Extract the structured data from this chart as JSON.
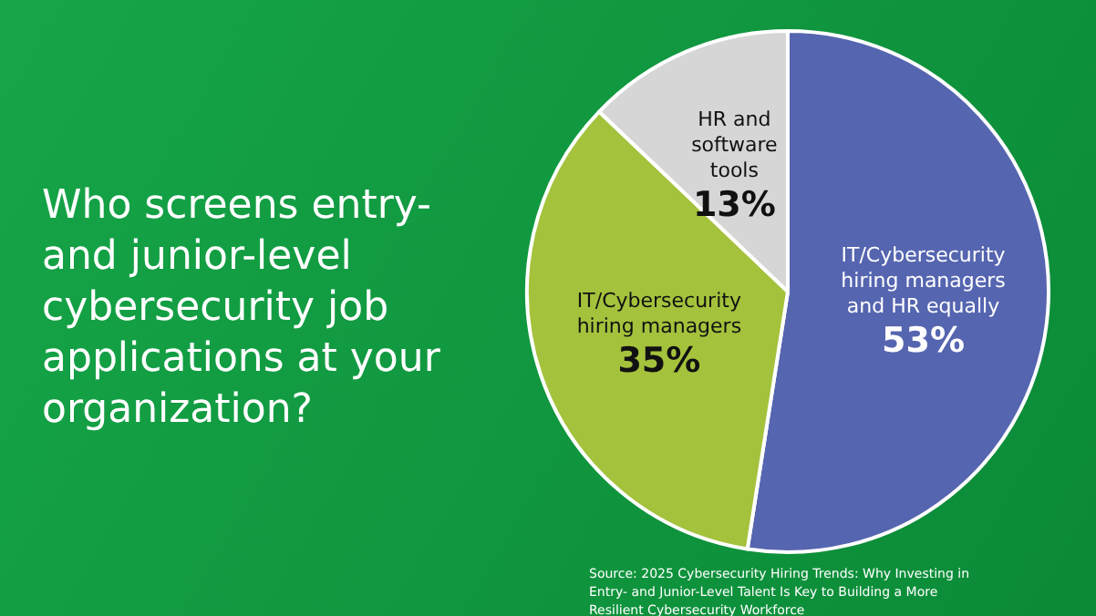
{
  "chart_data": {
    "type": "pie",
    "title": "Who screens entry- and junior-level cybersecurity job applications at your organization?",
    "categories": [
      "IT/Cybersecurity hiring managers and HR equally",
      "IT/Cybersecurity hiring managers",
      "HR and software tools"
    ],
    "values": [
      53,
      35,
      13
    ],
    "colors": [
      "#5565b0",
      "#a4c23c",
      "#d6d6d6"
    ],
    "value_labels": [
      "53%",
      "35%",
      "13%"
    ],
    "legend": false,
    "annotations": [
      "Source: 2025 Cybersecurity Hiring Trends: Why Investing in Entry- and Junior-Level Talent Is Key to Building a More Resilient Cybersecurity Workforce"
    ]
  }
}
